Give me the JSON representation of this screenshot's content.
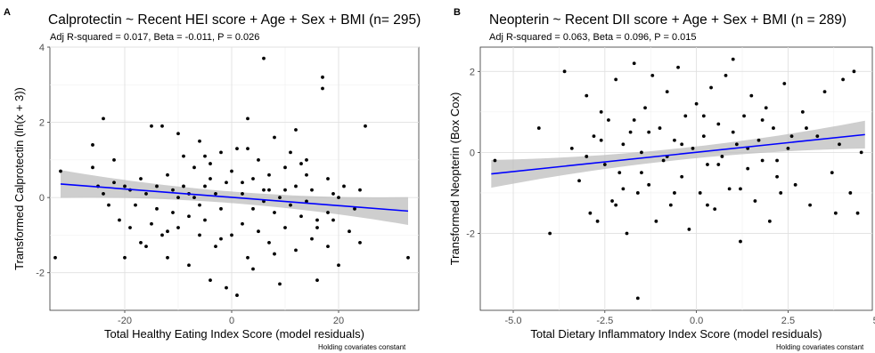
{
  "chart_data": [
    {
      "type": "scatter",
      "panel_label": "A",
      "title": "Calprotectin ~ Recent HEI score + Age + Sex + BMI (n= 295)",
      "subtitle": "Adj R-squared = 0.017, Beta = -0.011, P = 0.026",
      "xlabel": "Total Healthy Eating Index Score (model residuals)",
      "ylabel": "Transformed Calprotectin (ln(x + 3))",
      "caption": "Holding covariates constant",
      "xlim": [
        -34,
        35
      ],
      "ylim": [
        -3.0,
        4.0
      ],
      "xticks": [
        -20,
        0,
        20
      ],
      "xtick_labels": [
        "-20",
        "0",
        "20"
      ],
      "yticks": [
        -2,
        0,
        2,
        4
      ],
      "ytick_labels": [
        "-2",
        "0",
        "2",
        "4"
      ],
      "grid": true,
      "fit_line": {
        "x": [
          -32,
          33
        ],
        "y": [
          0.36,
          -0.36
        ],
        "color": "#0000ff",
        "confidence_band": true
      },
      "point_color": "#000000",
      "points": [
        [
          -32,
          0.7
        ],
        [
          -33,
          -1.6
        ],
        [
          -26,
          1.4
        ],
        [
          -26,
          0.8
        ],
        [
          -25,
          0.3
        ],
        [
          -24,
          2.1
        ],
        [
          -24,
          0.1
        ],
        [
          -23,
          -0.2
        ],
        [
          -22,
          1.0
        ],
        [
          -22,
          0.4
        ],
        [
          -21,
          -0.6
        ],
        [
          -20,
          0.3
        ],
        [
          -20,
          -1.6
        ],
        [
          -19,
          -0.8
        ],
        [
          -19,
          0.2
        ],
        [
          -18,
          -0.2
        ],
        [
          -17,
          0.5
        ],
        [
          -17,
          -1.2
        ],
        [
          -16,
          0.1
        ],
        [
          -15,
          -0.7
        ],
        [
          -15,
          1.9
        ],
        [
          -14,
          0.3
        ],
        [
          -14,
          -0.3
        ],
        [
          -13,
          1.9
        ],
        [
          -13,
          -1.0
        ],
        [
          -12,
          0.6
        ],
        [
          -12,
          -1.6
        ],
        [
          -11,
          0.2
        ],
        [
          -11,
          -0.4
        ],
        [
          -10,
          1.7
        ],
        [
          -10,
          -0.8
        ],
        [
          -9,
          0.3
        ],
        [
          -9,
          1.1
        ],
        [
          -8,
          -0.5
        ],
        [
          -8,
          -1.8
        ],
        [
          -7,
          0.0
        ],
        [
          -7,
          0.8
        ],
        [
          -6,
          -1.0
        ],
        [
          -6,
          1.5
        ],
        [
          -5,
          0.3
        ],
        [
          -5,
          -0.6
        ],
        [
          -4,
          -2.2
        ],
        [
          -4,
          0.9
        ],
        [
          -3,
          0.1
        ],
        [
          -3,
          -1.3
        ],
        [
          -2,
          1.2
        ],
        [
          -2,
          -0.3
        ],
        [
          -1,
          0.4
        ],
        [
          -1,
          -2.4
        ],
        [
          0,
          0.7
        ],
        [
          0,
          -1.0
        ],
        [
          1,
          1.3
        ],
        [
          1,
          -2.6
        ],
        [
          2,
          0.1
        ],
        [
          2,
          -0.7
        ],
        [
          3,
          2.1
        ],
        [
          3,
          -1.6
        ],
        [
          4,
          0.5
        ],
        [
          4,
          -0.3
        ],
        [
          5,
          1.0
        ],
        [
          5,
          -0.9
        ],
        [
          6,
          0.2
        ],
        [
          6,
          3.7
        ],
        [
          7,
          -1.2
        ],
        [
          7,
          0.6
        ],
        [
          8,
          1.6
        ],
        [
          8,
          -0.4
        ],
        [
          9,
          0.0
        ],
        [
          9,
          -2.3
        ],
        [
          10,
          0.8
        ],
        [
          10,
          -0.8
        ],
        [
          11,
          1.2
        ],
        [
          11,
          -0.2
        ],
        [
          12,
          0.3
        ],
        [
          12,
          -1.4
        ],
        [
          13,
          0.9
        ],
        [
          13,
          -0.5
        ],
        [
          14,
          1.0
        ],
        [
          14,
          -0.1
        ],
        [
          15,
          -1.1
        ],
        [
          15,
          0.2
        ],
        [
          16,
          -2.2
        ],
        [
          16,
          -0.8
        ],
        [
          17,
          3.2
        ],
        [
          17,
          2.9
        ],
        [
          18,
          0.5
        ],
        [
          18,
          -1.3
        ],
        [
          19,
          0.1
        ],
        [
          19,
          -0.6
        ],
        [
          20,
          0.0
        ],
        [
          20,
          -1.8
        ],
        [
          21,
          0.3
        ],
        [
          22,
          -0.9
        ],
        [
          23,
          -0.3
        ],
        [
          24,
          -1.2
        ],
        [
          24,
          0.2
        ],
        [
          25,
          1.9
        ],
        [
          33,
          -1.6
        ],
        [
          -12,
          -0.9
        ],
        [
          -8,
          0.1
        ],
        [
          -4,
          0.5
        ],
        [
          -2,
          -1.1
        ],
        [
          2,
          0.4
        ],
        [
          6,
          -0.1
        ],
        [
          10,
          0.2
        ],
        [
          14,
          0.6
        ],
        [
          18,
          -0.4
        ],
        [
          -16,
          -1.3
        ],
        [
          -6,
          -0.2
        ],
        [
          4,
          -1.9
        ],
        [
          8,
          -1.5
        ],
        [
          12,
          1.8
        ],
        [
          16,
          -0.6
        ],
        [
          -10,
          0.0
        ],
        [
          -5,
          1.1
        ],
        [
          3,
          1.3
        ],
        [
          7,
          0.2
        ]
      ]
    },
    {
      "type": "scatter",
      "panel_label": "B",
      "title": "Neopterin ~ Recent DII score + Age + Sex + BMI (n = 289)",
      "subtitle": "Adj R-squared = 0.063, Beta = 0.096, P = 0.015",
      "xlabel": "Total Dietary Inflammatory Index Score (model residuals)",
      "ylabel": "Transformed Neopterin (Box Cox)",
      "caption": "Holding covariates constant",
      "xlim": [
        -5.9,
        4.8
      ],
      "ylim": [
        -3.9,
        2.6
      ],
      "xticks": [
        -5.0,
        -2.5,
        0.0,
        2.5,
        5.0
      ],
      "xtick_labels": [
        "-5.0",
        "-2.5",
        "0.0",
        "2.5",
        "5.0"
      ],
      "yticks": [
        -2,
        0,
        2
      ],
      "ytick_labels": [
        "-2",
        "0",
        "2"
      ],
      "grid": true,
      "fit_line": {
        "x": [
          -5.6,
          4.6
        ],
        "y": [
          -0.53,
          0.44
        ],
        "color": "#0000ff",
        "confidence_band": true
      },
      "point_color": "#000000",
      "points": [
        [
          -5.5,
          -0.2
        ],
        [
          -4.3,
          0.6
        ],
        [
          -4.0,
          -2.0
        ],
        [
          -3.6,
          2.0
        ],
        [
          -3.4,
          0.1
        ],
        [
          -3.2,
          -0.7
        ],
        [
          -3.0,
          1.4
        ],
        [
          -2.9,
          -1.5
        ],
        [
          -2.8,
          0.4
        ],
        [
          -2.7,
          -1.7
        ],
        [
          -2.6,
          1.0
        ],
        [
          -2.5,
          -0.3
        ],
        [
          -2.4,
          0.8
        ],
        [
          -2.3,
          -1.2
        ],
        [
          -2.2,
          1.8
        ],
        [
          -2.1,
          -0.5
        ],
        [
          -2.0,
          0.2
        ],
        [
          -1.9,
          -2.0
        ],
        [
          -1.8,
          0.5
        ],
        [
          -1.7,
          2.2
        ],
        [
          -1.6,
          -3.6
        ],
        [
          -1.6,
          -1.0
        ],
        [
          -1.5,
          0.0
        ],
        [
          -1.4,
          1.1
        ],
        [
          -1.3,
          -0.8
        ],
        [
          -1.2,
          1.9
        ],
        [
          -1.1,
          -1.7
        ],
        [
          -1.0,
          0.6
        ],
        [
          -0.9,
          -0.2
        ],
        [
          -0.8,
          1.5
        ],
        [
          -0.7,
          -1.3
        ],
        [
          -0.6,
          0.3
        ],
        [
          -0.5,
          2.1
        ],
        [
          -0.4,
          -0.6
        ],
        [
          -0.3,
          0.9
        ],
        [
          -0.2,
          -1.9
        ],
        [
          -0.1,
          0.1
        ],
        [
          0.0,
          1.2
        ],
        [
          0.1,
          -1.0
        ],
        [
          0.2,
          0.4
        ],
        [
          0.3,
          -0.3
        ],
        [
          0.4,
          1.6
        ],
        [
          0.5,
          -1.4
        ],
        [
          0.6,
          0.7
        ],
        [
          0.7,
          -0.1
        ],
        [
          0.8,
          1.9
        ],
        [
          0.9,
          -0.9
        ],
        [
          1.0,
          2.3
        ],
        [
          1.1,
          0.2
        ],
        [
          1.2,
          -2.2
        ],
        [
          1.3,
          0.9
        ],
        [
          1.4,
          -0.4
        ],
        [
          1.5,
          1.4
        ],
        [
          1.6,
          -1.2
        ],
        [
          1.7,
          0.3
        ],
        [
          1.8,
          -0.2
        ],
        [
          1.9,
          1.1
        ],
        [
          2.0,
          -1.7
        ],
        [
          2.1,
          0.6
        ],
        [
          2.2,
          -0.6
        ],
        [
          2.4,
          1.7
        ],
        [
          2.5,
          0.1
        ],
        [
          2.7,
          -0.8
        ],
        [
          2.9,
          1.0
        ],
        [
          3.1,
          -1.3
        ],
        [
          3.3,
          0.4
        ],
        [
          3.5,
          1.5
        ],
        [
          3.7,
          -0.5
        ],
        [
          3.8,
          -1.5
        ],
        [
          3.9,
          0.2
        ],
        [
          4.0,
          1.8
        ],
        [
          4.2,
          -1.0
        ],
        [
          4.3,
          2.0
        ],
        [
          4.4,
          -1.5
        ],
        [
          4.5,
          0.0
        ],
        [
          -3.0,
          -0.1
        ],
        [
          -2.6,
          0.3
        ],
        [
          -2.0,
          -0.9
        ],
        [
          -1.7,
          0.8
        ],
        [
          -1.3,
          0.5
        ],
        [
          -0.8,
          -0.1
        ],
        [
          -0.4,
          0.2
        ],
        [
          0.2,
          0.9
        ],
        [
          0.6,
          -0.3
        ],
        [
          1.0,
          0.5
        ],
        [
          1.4,
          0.1
        ],
        [
          1.8,
          0.8
        ],
        [
          2.2,
          -0.2
        ],
        [
          2.6,
          0.4
        ],
        [
          3.0,
          0.6
        ],
        [
          -2.2,
          -1.3
        ],
        [
          -1.5,
          -0.5
        ],
        [
          -0.6,
          -1.0
        ],
        [
          0.3,
          -1.3
        ],
        [
          1.2,
          -0.9
        ],
        [
          2.3,
          -1.0
        ]
      ]
    }
  ]
}
